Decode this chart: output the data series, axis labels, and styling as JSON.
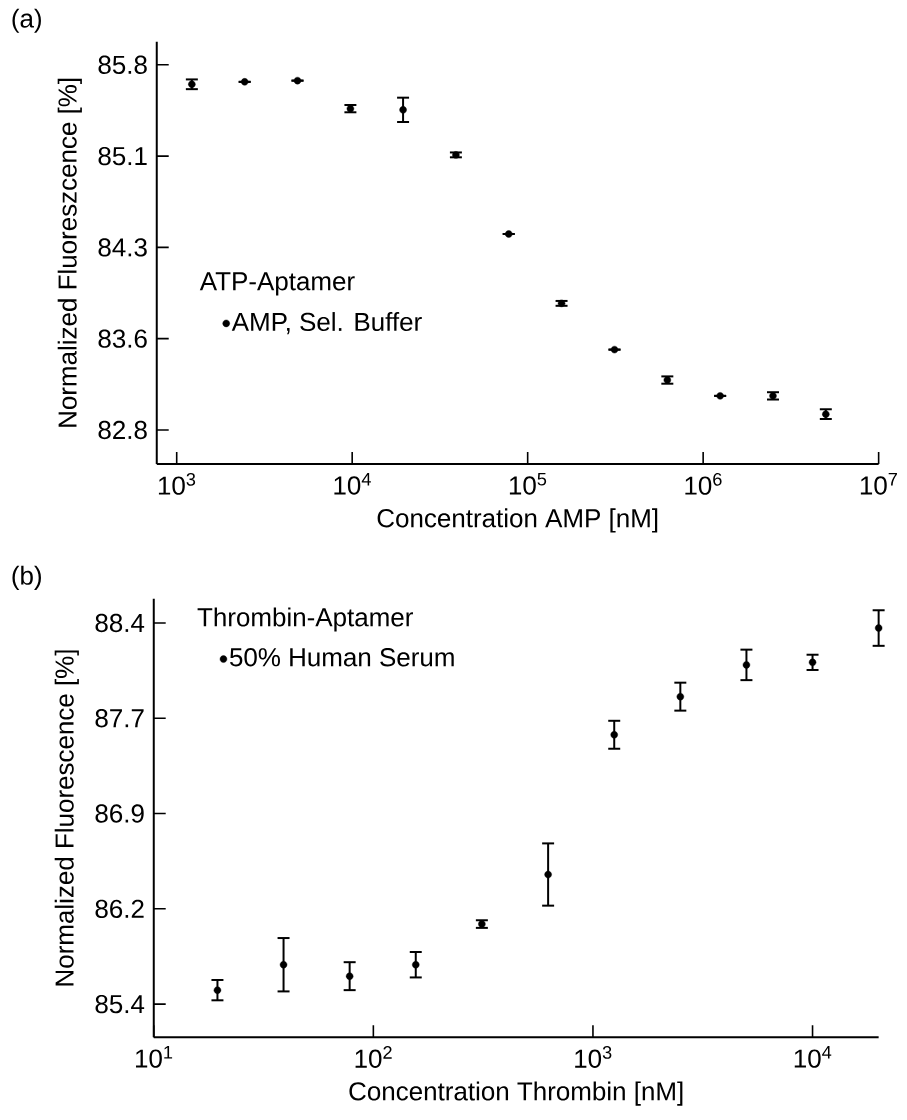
{
  "chart_data": [
    {
      "type": "scatter",
      "title": "(a)",
      "xlabel": "Concentration AMP [nM]",
      "ylabel": "Normalized Fluoreszcence [%]",
      "legend_title": "ATP-Aptamer",
      "legend": "left",
      "log": "x",
      "marker": "circle",
      "xlim": [
        770,
        10000000
      ],
      "ylim": [
        82.52,
        85.99
      ],
      "xticks": [
        {
          "value": 1000,
          "label": "10$^{3}$"
        },
        {
          "value": 10000,
          "label": "10$^{4}$"
        },
        {
          "value": 100000,
          "label": "10$^{5}$"
        },
        {
          "value": 1000000,
          "label": "10$^{6}$"
        },
        {
          "value": 10000000,
          "label": "10$^{7}$"
        }
      ],
      "yticks": [
        82.8,
        {
          "value": 83.55,
          "label": "83.6"
        },
        84.3,
        {
          "value": 85.05,
          "label": "85.1"
        },
        85.8
      ],
      "series": [
        {
          "name": "AMP, Sel. Buffer",
          "color": "#000000",
          "x": [
            1220,
            2440,
            4880,
            9770,
            19500,
            39000,
            78000,
            156000,
            312500,
            625000,
            1250000,
            2500000,
            5000000
          ],
          "values": [
            85.64,
            85.66,
            85.67,
            85.44,
            85.43,
            85.06,
            84.41,
            83.84,
            83.46,
            83.21,
            83.08,
            83.08,
            82.93
          ],
          "errors": [
            0.04,
            null,
            null,
            0.03,
            0.1,
            0.02,
            null,
            0.02,
            null,
            0.03,
            null,
            0.03,
            0.04
          ]
        }
      ]
    },
    {
      "type": "scatter",
      "title": "(b)",
      "xlabel": "Concentration Thrombin [nM]",
      "ylabel": "Normalized Fluorescence [%]",
      "legend_title": "Thrombin-Aptamer",
      "legend": "top left",
      "log": "x",
      "marker": "circle",
      "xlim": [
        10,
        20000
      ],
      "ylim": [
        85.14,
        88.59
      ],
      "xticks": [
        {
          "value": 10,
          "label": "10$^{1}$"
        },
        {
          "value": 100,
          "label": "10$^{2}$"
        },
        {
          "value": 1000,
          "label": "10$^{3}$"
        },
        {
          "value": 10000,
          "label": "10$^{4}$"
        }
      ],
      "yticks": [
        85.4,
        {
          "value": 86.15,
          "label": "86.2"
        },
        86.9,
        {
          "value": 87.65,
          "label": "87.7"
        },
        88.4
      ],
      "series": [
        {
          "name": "50% Human Serum",
          "color": "#000000",
          "x": [
            19.5,
            39,
            78,
            156,
            312,
            625,
            1250,
            2500,
            5000,
            10000,
            20000
          ],
          "values": [
            85.51,
            85.71,
            85.62,
            85.71,
            86.03,
            86.42,
            87.52,
            87.82,
            88.07,
            88.09,
            88.36
          ],
          "errors": [
            0.08,
            0.21,
            0.11,
            0.1,
            0.03,
            0.245,
            0.11,
            0.11,
            0.12,
            0.06,
            0.14
          ]
        }
      ]
    }
  ]
}
